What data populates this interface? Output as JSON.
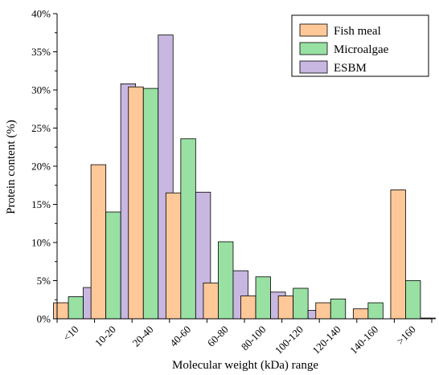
{
  "chart_data": {
    "type": "bar",
    "xlabel": "Molecular weight (kDa)  range",
    "ylabel": "Protein content (%)",
    "ylim": [
      0,
      40
    ],
    "ytick_step": 5,
    "ytick_suffix": "%",
    "grid": false,
    "legend_position": "top-right",
    "categories": [
      "<10",
      "10-20",
      "20-40",
      "40-60",
      "60-80",
      "80-100",
      "100-120",
      "120-140",
      "140-160",
      ">160"
    ],
    "series": [
      {
        "name": "Fish meal",
        "color": "#FFC899",
        "values": [
          2.1,
          20.2,
          30.4,
          16.5,
          4.7,
          3.0,
          3.0,
          2.1,
          1.3,
          16.9
        ]
      },
      {
        "name": "Microalgae",
        "color": "#99E0A3",
        "values": [
          2.9,
          14.0,
          30.2,
          23.6,
          10.1,
          5.5,
          4.0,
          2.6,
          2.1,
          5.0
        ]
      },
      {
        "name": "ESBM",
        "color": "#C8B7E0",
        "values": [
          4.1,
          30.8,
          37.2,
          16.6,
          6.3,
          3.5,
          1.1,
          0.0,
          0.0,
          0.1
        ]
      }
    ]
  }
}
